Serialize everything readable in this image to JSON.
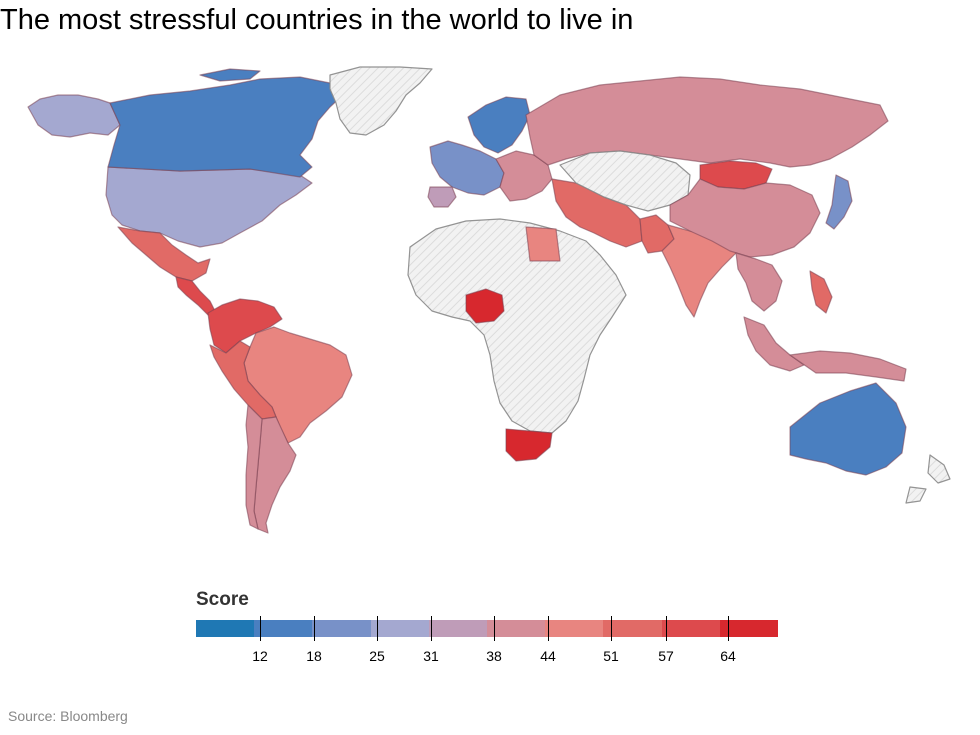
{
  "title": "The most stressful countries in the world to live in",
  "legend": {
    "title": "Score",
    "ticks": [
      12,
      18,
      25,
      31,
      38,
      44,
      51,
      57,
      64
    ],
    "colors": [
      "#1f78b4",
      "#4a7fc0",
      "#7891c8",
      "#a4a8d0",
      "#bf9cb8",
      "#d48d98",
      "#e88580",
      "#e16a66",
      "#dd4a4d",
      "#d7282e"
    ]
  },
  "source": "Source: Bloomberg",
  "map": {
    "no_data_color": "#eeeeee",
    "border_color": "#888888",
    "regions": [
      {
        "name": "Alaska / USA",
        "color": "#a4a8d0"
      },
      {
        "name": "Canada",
        "color": "#4a7fc0"
      },
      {
        "name": "Greenland",
        "color": "#eeeeee"
      },
      {
        "name": "Mexico",
        "color": "#e16a66"
      },
      {
        "name": "Central America",
        "color": "#dd4a4d"
      },
      {
        "name": "Venezuela / Colombia",
        "color": "#dd4a4d"
      },
      {
        "name": "Brazil",
        "color": "#e88580"
      },
      {
        "name": "Peru / Bolivia",
        "color": "#e16a66"
      },
      {
        "name": "Argentina",
        "color": "#d48d98"
      },
      {
        "name": "Chile",
        "color": "#d48d98"
      },
      {
        "name": "Western Europe",
        "color": "#7891c8"
      },
      {
        "name": "Scandinavia",
        "color": "#4a7fc0"
      },
      {
        "name": "Spain",
        "color": "#bf9cb8"
      },
      {
        "name": "Eastern Europe",
        "color": "#d48d98"
      },
      {
        "name": "Russia",
        "color": "#d48d98"
      },
      {
        "name": "Africa (no data)",
        "color": "#eeeeee"
      },
      {
        "name": "Egypt",
        "color": "#e88580"
      },
      {
        "name": "Nigeria",
        "color": "#d7282e"
      },
      {
        "name": "South Africa",
        "color": "#d7282e"
      },
      {
        "name": "Iran / Middle East",
        "color": "#e16a66"
      },
      {
        "name": "Pakistan",
        "color": "#e16a66"
      },
      {
        "name": "India",
        "color": "#e88580"
      },
      {
        "name": "Central Asia (no data)",
        "color": "#eeeeee"
      },
      {
        "name": "Mongolia",
        "color": "#dd4a4d"
      },
      {
        "name": "China",
        "color": "#d48d98"
      },
      {
        "name": "Japan",
        "color": "#7891c8"
      },
      {
        "name": "Southeast Asia",
        "color": "#d48d98"
      },
      {
        "name": "Philippines",
        "color": "#e16a66"
      },
      {
        "name": "Indonesia",
        "color": "#d48d98"
      },
      {
        "name": "Australia",
        "color": "#4a7fc0"
      },
      {
        "name": "New Zealand",
        "color": "#eeeeee"
      }
    ]
  }
}
